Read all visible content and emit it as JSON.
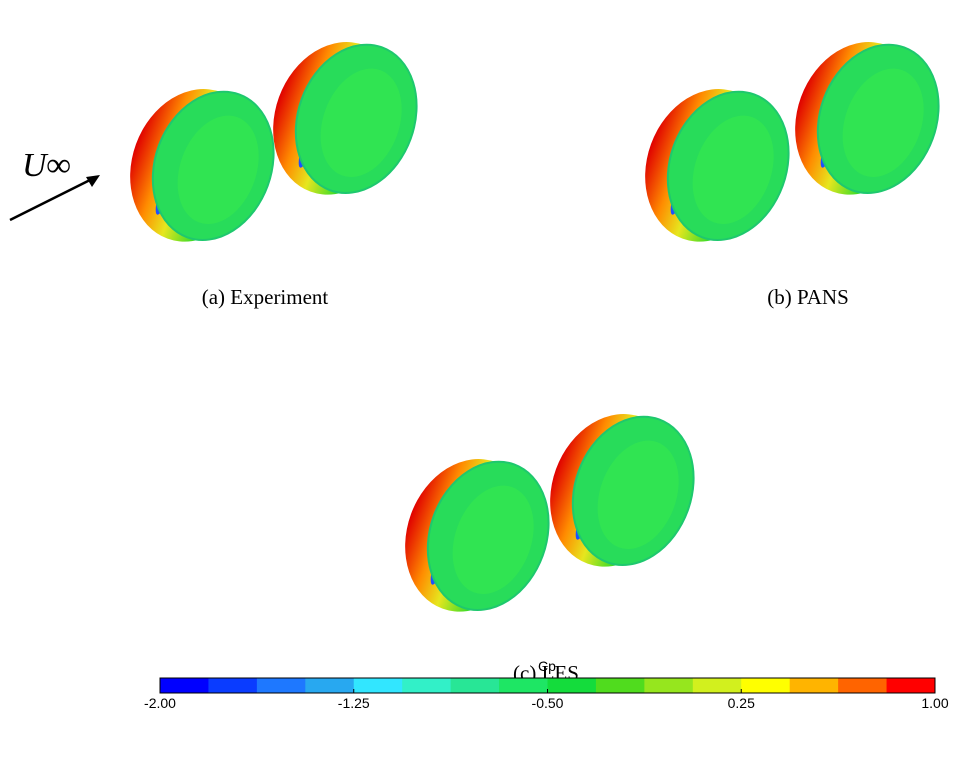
{
  "flow_label": "U∞",
  "panels": [
    {
      "caption": "(a) Experiment"
    },
    {
      "caption": "(b) PANS"
    },
    {
      "caption": "(c) LES"
    }
  ],
  "colorbar": {
    "title": "Cp",
    "lim": [
      -2,
      1
    ],
    "colors": [
      "#0000ff",
      "#0a3cff",
      "#1e78ff",
      "#28a8f0",
      "#32e6ff",
      "#32f0c8",
      "#28e696",
      "#1ee664",
      "#14dc3c",
      "#50dc1e",
      "#96e61e",
      "#d2f01e",
      "#ffff00",
      "#ffb400",
      "#ff6400",
      "#ff0000"
    ],
    "ticks": [
      {
        "value": -2,
        "label": "-2.00"
      },
      {
        "value": -1.25,
        "label": "-1.25"
      },
      {
        "value": -0.5,
        "label": "-0.50"
      },
      {
        "value": 0.25,
        "label": "0.25"
      },
      {
        "value": 1,
        "label": "1.00"
      }
    ]
  }
}
